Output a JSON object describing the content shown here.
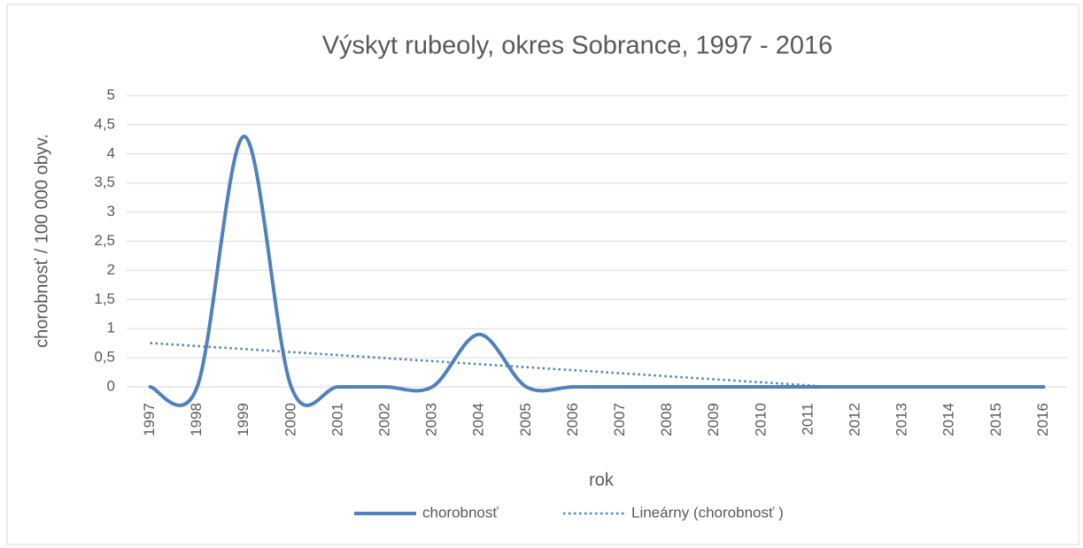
{
  "chart_data": {
    "type": "line",
    "title": "Výskyt  rubeoly, okres Sobrance,  1997 - 2016",
    "x_label": "rok",
    "y_label": "chorobnosť / 100 000 obyv.",
    "categories": [
      "1997",
      "1998",
      "1999",
      "2000",
      "2001",
      "2002",
      "2003",
      "2004",
      "2005",
      "2006",
      "2007",
      "2008",
      "2009",
      "2010",
      "2011",
      "2012",
      "2013",
      "2014",
      "2015",
      "2016"
    ],
    "series": [
      {
        "name": "chorobnosť",
        "color": "#4f81bd",
        "smooth": true,
        "values": [
          0,
          0,
          4.3,
          0,
          0,
          0,
          0,
          0.9,
          0,
          0,
          0,
          0,
          0,
          0,
          0,
          0,
          0,
          0,
          0,
          0
        ]
      }
    ],
    "trendline": {
      "name": "Lineárny (chorobnosť )",
      "type": "linear",
      "color": "#4f81bd"
    },
    "ylim": [
      0,
      5
    ],
    "yticks": [
      0,
      {
        "value": 0.5,
        "label": "0,5"
      },
      1,
      {
        "value": 1.5,
        "label": "1,5"
      },
      2,
      {
        "value": 2.5,
        "label": "2,5"
      },
      3,
      {
        "value": 3.5,
        "label": "3,5"
      },
      4,
      {
        "value": 4.5,
        "label": "4,5"
      },
      5
    ],
    "grid": true,
    "legend": "bottom"
  }
}
